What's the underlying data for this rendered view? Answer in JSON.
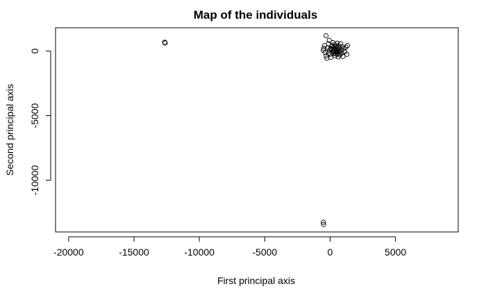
{
  "chart_data": {
    "type": "scatter",
    "title": "Map of the individuals",
    "xlabel": "First principal axis",
    "ylabel": "Second principal axis",
    "xlim": [
      -21000,
      9800
    ],
    "ylim": [
      -14000,
      1800
    ],
    "xticks": [
      -20000,
      -15000,
      -10000,
      -5000,
      0,
      5000
    ],
    "yticks": [
      0,
      -5000,
      -10000
    ],
    "grid": false,
    "legend": "none",
    "marker": "open-circle",
    "points": [
      {
        "x": -12650,
        "y": 680
      },
      {
        "x": -12620,
        "y": 620
      },
      {
        "x": -520,
        "y": -13250
      },
      {
        "x": -500,
        "y": -13420
      },
      {
        "x": -310,
        "y": 1180
      },
      {
        "x": -420,
        "y": 420
      },
      {
        "x": -480,
        "y": 220
      },
      {
        "x": -520,
        "y": 60
      },
      {
        "x": -380,
        "y": -120
      },
      {
        "x": -300,
        "y": -380
      },
      {
        "x": -250,
        "y": -560
      },
      {
        "x": -180,
        "y": 250
      },
      {
        "x": -120,
        "y": 560
      },
      {
        "x": -60,
        "y": 820
      },
      {
        "x": -40,
        "y": 80
      },
      {
        "x": 20,
        "y": -260
      },
      {
        "x": 60,
        "y": -480
      },
      {
        "x": 110,
        "y": 360
      },
      {
        "x": 150,
        "y": 120
      },
      {
        "x": 180,
        "y": -60
      },
      {
        "x": 220,
        "y": 640
      },
      {
        "x": 260,
        "y": 260
      },
      {
        "x": 300,
        "y": -180
      },
      {
        "x": 330,
        "y": 40
      },
      {
        "x": 360,
        "y": 480
      },
      {
        "x": 390,
        "y": -360
      },
      {
        "x": 420,
        "y": 220
      },
      {
        "x": 450,
        "y": -80
      },
      {
        "x": 480,
        "y": 360
      },
      {
        "x": 500,
        "y": 0
      },
      {
        "x": 530,
        "y": 600
      },
      {
        "x": 560,
        "y": -240
      },
      {
        "x": 590,
        "y": 150
      },
      {
        "x": 620,
        "y": -450
      },
      {
        "x": 650,
        "y": 400
      },
      {
        "x": 680,
        "y": -30
      },
      {
        "x": 720,
        "y": 250
      },
      {
        "x": 760,
        "y": -300
      },
      {
        "x": 800,
        "y": 560
      },
      {
        "x": 840,
        "y": 80
      },
      {
        "x": 880,
        "y": -150
      },
      {
        "x": 930,
        "y": 320
      },
      {
        "x": 980,
        "y": -420
      },
      {
        "x": 1050,
        "y": 180
      },
      {
        "x": 1120,
        "y": -60
      },
      {
        "x": 1200,
        "y": 300
      },
      {
        "x": 1280,
        "y": -250
      },
      {
        "x": 1320,
        "y": 420
      },
      {
        "x": 250,
        "y": -20
      },
      {
        "x": 350,
        "y": 110
      },
      {
        "x": 430,
        "y": -200
      },
      {
        "x": 150,
        "y": 430
      },
      {
        "x": -100,
        "y": -150
      },
      {
        "x": 600,
        "y": 310
      },
      {
        "x": 700,
        "y": -120
      },
      {
        "x": 50,
        "y": 200
      }
    ]
  }
}
